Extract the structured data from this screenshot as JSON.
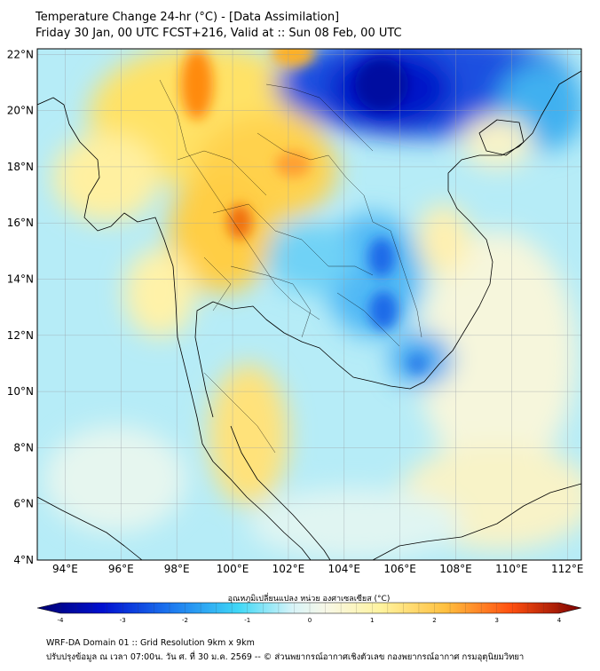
{
  "header": {
    "title_line1": "Temperature Change 24-hr (°C) - [Data Assimilation]",
    "title_line2": "Friday 30 Jan, 00 UTC FCST+216, Valid at :: Sun 08 Feb, 00 UTC"
  },
  "map": {
    "lat_ticks": [
      "22°N",
      "20°N",
      "18°N",
      "16°N",
      "14°N",
      "12°N",
      "10°N",
      "8°N",
      "6°N",
      "4°N"
    ],
    "lon_ticks": [
      "94°E",
      "96°E",
      "98°E",
      "100°E",
      "102°E",
      "104°E",
      "106°E",
      "108°E",
      "110°E",
      "112°E"
    ],
    "lat_values": [
      22,
      20,
      18,
      16,
      14,
      12,
      10,
      8,
      6,
      4
    ],
    "lon_values": [
      94,
      96,
      98,
      100,
      102,
      104,
      106,
      108,
      110,
      112
    ],
    "extent": {
      "lon_min": 93,
      "lon_max": 112.5,
      "lat_min": 4,
      "lat_max": 22.2
    },
    "field": "24-hr temperature change (°C)",
    "colors": {
      "cold_max": "#00008b",
      "cold": "#1e90ff",
      "cool": "#5fd3f5",
      "neutral": "#f3f8ee",
      "warm": "#fff3a0",
      "hot": "#ff8c00",
      "hot_max": "#8b0000"
    }
  },
  "colorbar": {
    "title": "อุณหภูมิเปลี่ยนแปลง หน่วย องศาเซลเซียส (°C)",
    "ticks": [
      "-4",
      "-3",
      "-2",
      "-1",
      "0",
      "1",
      "2",
      "3",
      "4"
    ],
    "tick_values": [
      -4,
      -3,
      -2,
      -1,
      0,
      1,
      2,
      3,
      4
    ],
    "range": [
      -4,
      4
    ]
  },
  "footer": {
    "line1": "WRF-DA Domain 01 :: Grid Resolution 9km x 9km",
    "line2": "ปรับปรุงข้อมูล ณ เวลา 07:00น. วัน ศ. ที่ 30 ม.ค. 2569 -- © ส่วนพยากรณ์อากาศเชิงตัวเลข กองพยากรณ์อากาศ กรมอุตุนิยมวิทยา"
  }
}
